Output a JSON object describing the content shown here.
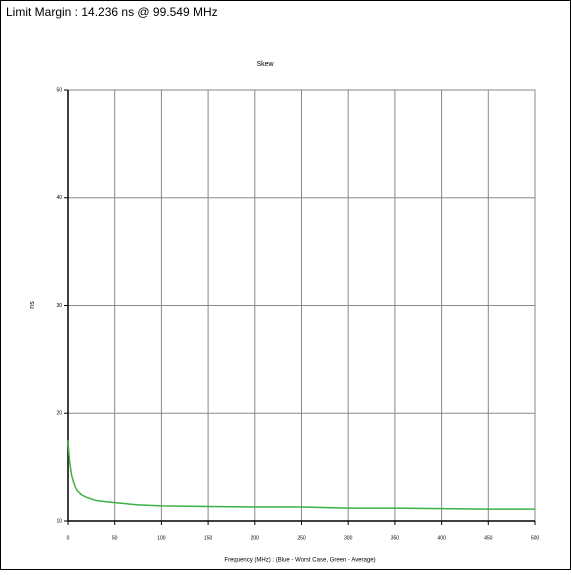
{
  "chart_data": {
    "type": "line",
    "header": "Limit Margin : 14.236 ns @ 99.549 MHz",
    "title": "Skew",
    "ylabel": "ns",
    "xlabel": "Frequency (MHz) : (Blue - Worst Case, Green - Average)",
    "x": [
      0,
      1,
      2,
      4,
      6,
      8,
      10,
      15,
      20,
      30,
      40,
      50,
      75,
      100,
      150,
      200,
      250,
      300,
      350,
      400,
      450,
      500
    ],
    "series": [
      {
        "color": "#3cb043",
        "values": [
          17.5,
          16.2,
          15.3,
          14.2,
          13.6,
          13.1,
          12.8,
          12.4,
          12.2,
          11.9,
          11.8,
          11.7,
          11.5,
          11.4,
          11.35,
          11.3,
          11.3,
          11.2,
          11.2,
          11.15,
          11.1,
          11.1
        ]
      }
    ],
    "xlim": [
      0,
      500
    ],
    "xticks": [
      0,
      50,
      100,
      150,
      200,
      250,
      300,
      350,
      400,
      450,
      500
    ],
    "ylim": [
      10,
      50
    ],
    "yticks": [
      10,
      20,
      30,
      40,
      50
    ],
    "grid": true
  }
}
